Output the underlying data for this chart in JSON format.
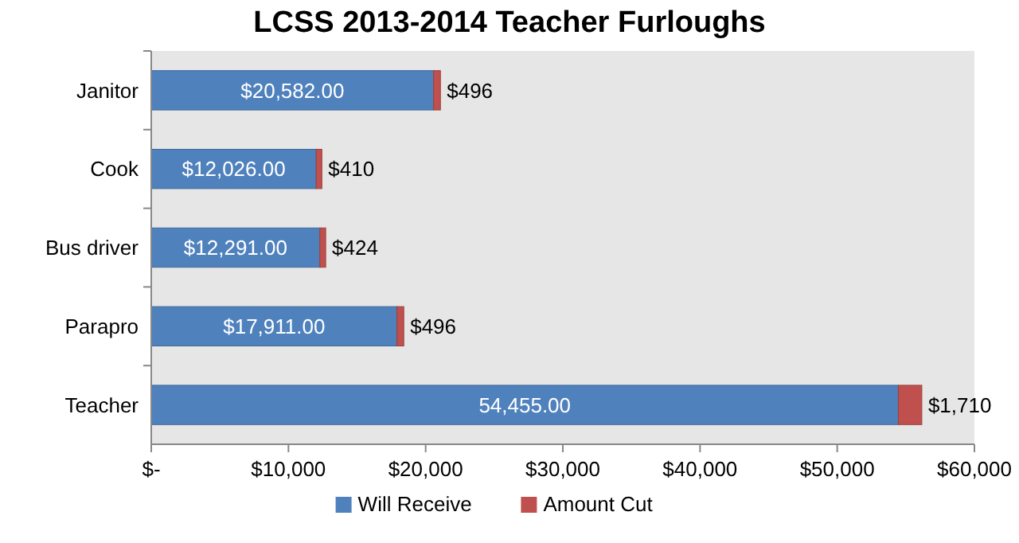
{
  "chart_data": {
    "type": "bar",
    "title": "LCSS 2013-2014 Teacher Furloughs",
    "orientation": "horizontal",
    "stacked": true,
    "categories": [
      "Janitor",
      "Cook",
      "Bus driver",
      "Parapro",
      "Teacher"
    ],
    "series": [
      {
        "name": "Will Receive",
        "color": "#4f81bd",
        "values": [
          20582,
          12026,
          12291,
          17911,
          54455
        ],
        "value_labels": [
          "$20,582.00",
          "$12,026.00",
          "$12,291.00",
          "$17,911.00",
          "54,455.00"
        ]
      },
      {
        "name": "Amount Cut",
        "color": "#c0504d",
        "values": [
          496,
          410,
          424,
          496,
          1710
        ],
        "value_labels": [
          "$496",
          "$410",
          "$424",
          "$496",
          "$1,710"
        ]
      }
    ],
    "xlim": [
      0,
      60000
    ],
    "xticks": [
      {
        "value": 0,
        "label": "$-"
      },
      {
        "value": 10000,
        "label": "$10,000"
      },
      {
        "value": 20000,
        "label": "$20,000"
      },
      {
        "value": 30000,
        "label": "$30,000"
      },
      {
        "value": 40000,
        "label": "$40,000"
      },
      {
        "value": 50000,
        "label": "$50,000"
      },
      {
        "value": 60000,
        "label": "$60,000"
      }
    ],
    "legend": "bottom"
  }
}
